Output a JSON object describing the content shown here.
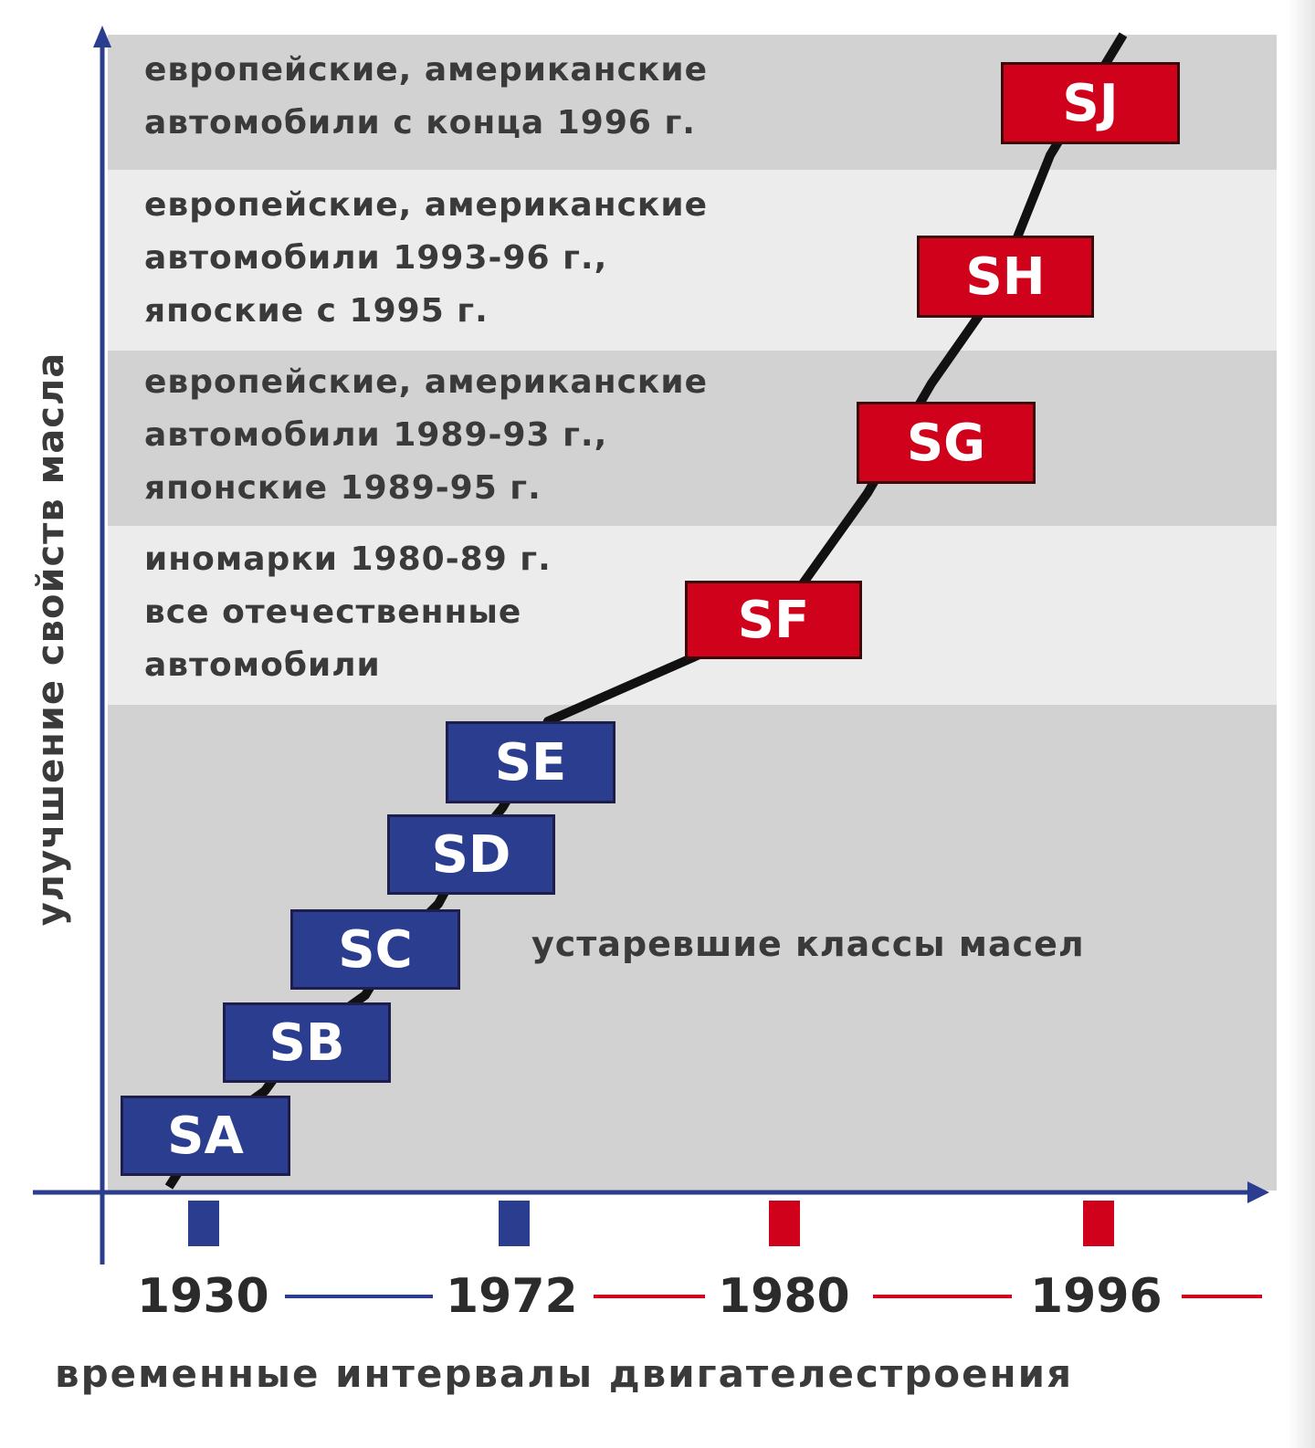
{
  "colors": {
    "band_dark": "#d2d2d2",
    "band_light": "#ececec",
    "axis": "#2b3d8f",
    "box_blue": "#2b3d8f",
    "box_red": "#d0021b",
    "line": "#111111"
  },
  "y_axis_label": "улучшение свойств масла",
  "x_axis_label": "временные интервалы двигателестроения",
  "bands": [
    {
      "text": "европейские, американские\nавтомобили с конца 1996 г."
    },
    {
      "text": "европейские, американские\nавтомобили 1993-96 г.,\nяпоские с 1995 г."
    },
    {
      "text": "европейские, американские\nавтомобили 1989-93 г.,\nяпонские 1989-95 г."
    },
    {
      "text": "иномарки 1980-89 г.\nвсе отечественные\nавтомобили"
    },
    {
      "text": "устаревшие классы масел"
    }
  ],
  "classes": [
    {
      "label": "SA",
      "status": "obsolete"
    },
    {
      "label": "SB",
      "status": "obsolete"
    },
    {
      "label": "SC",
      "status": "obsolete"
    },
    {
      "label": "SD",
      "status": "obsolete"
    },
    {
      "label": "SE",
      "status": "obsolete"
    },
    {
      "label": "SF",
      "status": "current"
    },
    {
      "label": "SG",
      "status": "current"
    },
    {
      "label": "SH",
      "status": "current"
    },
    {
      "label": "SJ",
      "status": "current"
    }
  ],
  "years": [
    "1930",
    "1972",
    "1980",
    "1996"
  ]
}
